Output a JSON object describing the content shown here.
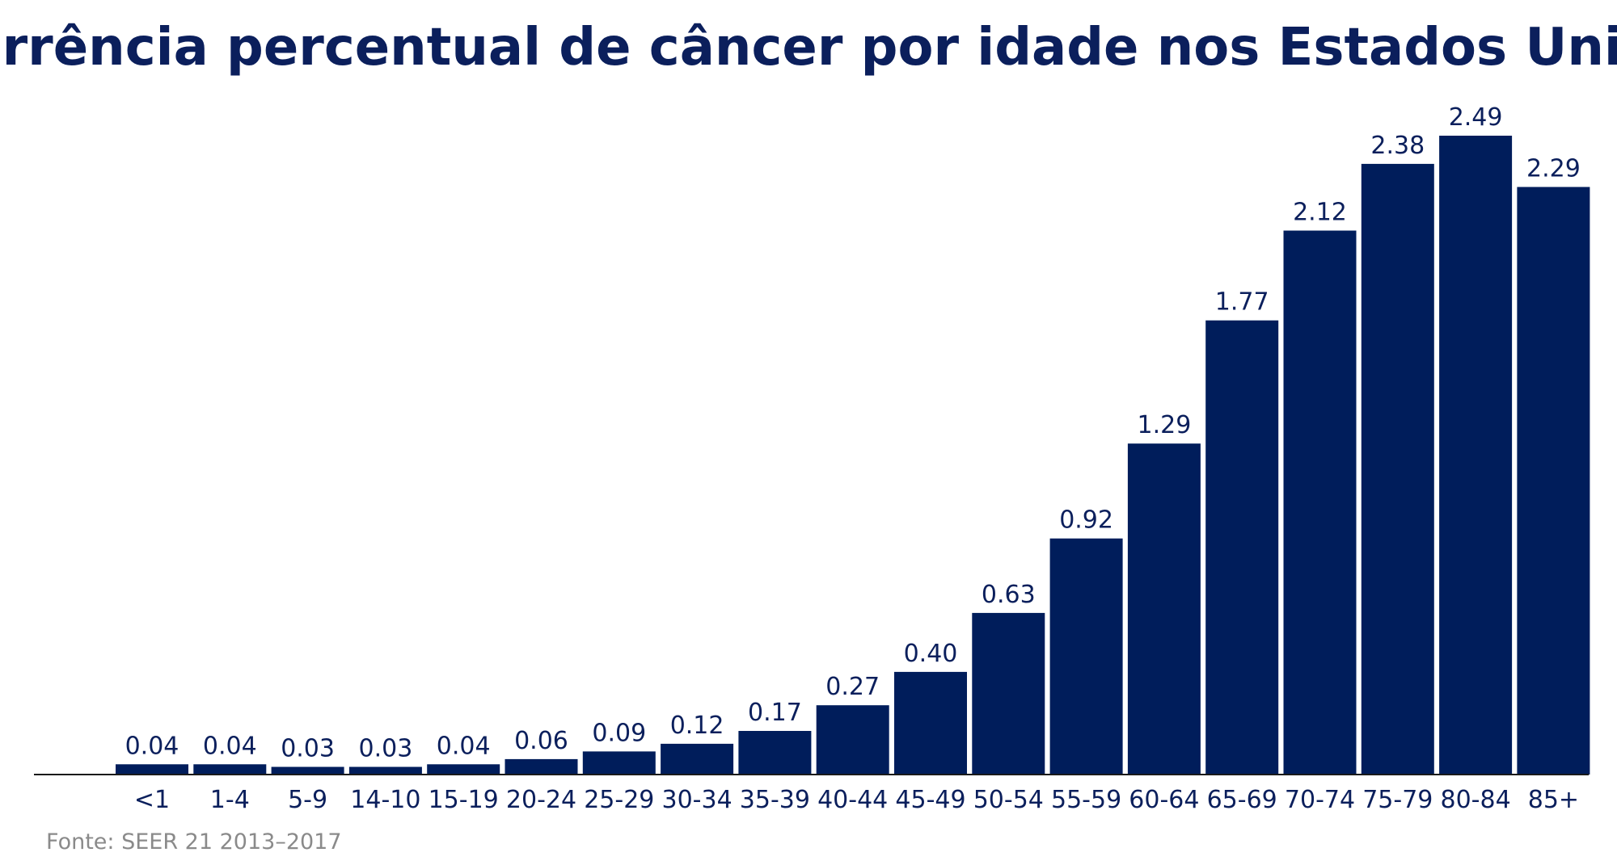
{
  "title": "Ocorrência percentual de câncer por idade nos Estados Unidos",
  "source": "Fonte: SEER 21 2013–2017",
  "colors": {
    "bar": "#001d5b",
    "text": "#0b1f5c",
    "axis": "#1a1a1a",
    "source": "#8a8a8a"
  },
  "chart_data": {
    "type": "bar",
    "title": "Ocorrência percentual de câncer por idade nos Estados Unidos",
    "xlabel": "",
    "ylabel": "",
    "ylim": [
      0,
      2.49
    ],
    "grid": false,
    "legend": "none",
    "categories": [
      "<1",
      "1-4",
      "5-9",
      "14-10",
      "15-19",
      "20-24",
      "25-29",
      "30-34",
      "35-39",
      "40-44",
      "45-49",
      "50-54",
      "55-59",
      "60-64",
      "65-69",
      "70-74",
      "75-79",
      "80-84",
      "85+"
    ],
    "values": [
      0.04,
      0.04,
      0.03,
      0.03,
      0.04,
      0.06,
      0.09,
      0.12,
      0.17,
      0.27,
      0.4,
      0.63,
      0.92,
      1.29,
      1.77,
      2.12,
      2.38,
      2.49,
      2.29
    ],
    "value_labels": [
      "0.04",
      "0.04",
      "0.03",
      "0.03",
      "0.04",
      "0.06",
      "0.09",
      "0.12",
      "0.17",
      "0.27",
      "0.40",
      "0.63",
      "0.92",
      "1.29",
      "1.77",
      "2.12",
      "2.38",
      "2.49",
      "2.29"
    ]
  }
}
